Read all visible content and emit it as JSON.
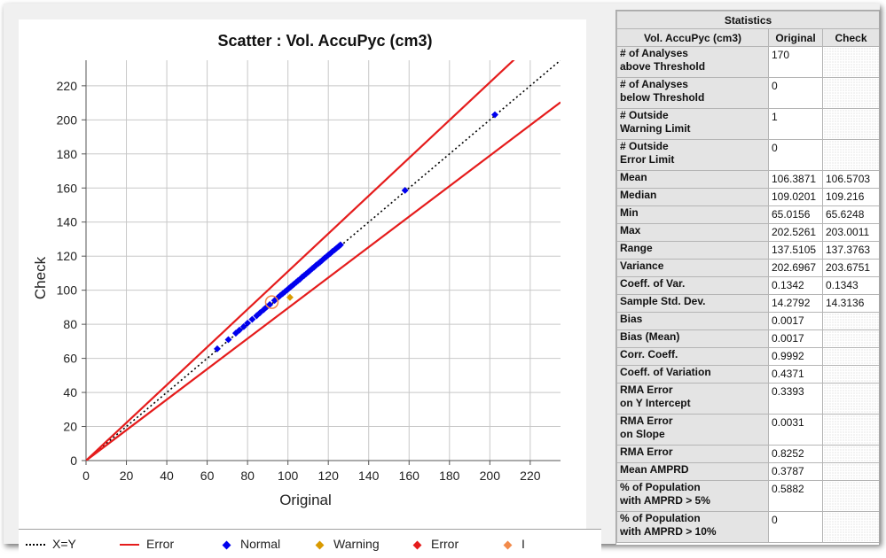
{
  "chart_data": {
    "type": "scatter",
    "title": "Scatter : Vol. AccuPyc (cm3)",
    "xlabel": "Original",
    "ylabel": "Check",
    "xlim": [
      0,
      235
    ],
    "ylim": [
      0,
      235
    ],
    "xticks": [
      0,
      20,
      40,
      60,
      80,
      100,
      120,
      140,
      160,
      180,
      200,
      220
    ],
    "yticks": [
      0,
      20,
      40,
      60,
      80,
      100,
      120,
      140,
      160,
      180,
      200,
      220
    ],
    "grid": true,
    "reference_lines": [
      {
        "name": "X=Y",
        "slope": 1.0,
        "style": "dotted",
        "color": "#000000"
      },
      {
        "name": "Error",
        "slope": 1.11,
        "style": "solid",
        "color": "#e51c1c"
      },
      {
        "name": "Error",
        "slope": 0.895,
        "style": "solid",
        "color": "#e51c1c"
      }
    ],
    "series": [
      {
        "name": "Normal",
        "color": "#0000ee",
        "points": [
          [
            65.0,
            65.6
          ],
          [
            70.5,
            71.0
          ],
          [
            74.2,
            74.8
          ],
          [
            76.0,
            76.6
          ],
          [
            78.1,
            78.6
          ],
          [
            80.0,
            80.7
          ],
          [
            82.3,
            82.9
          ],
          [
            84.5,
            85.0
          ],
          [
            86.2,
            86.8
          ],
          [
            88.0,
            88.6
          ],
          [
            89.5,
            90.2
          ],
          [
            91.0,
            91.6
          ],
          [
            93.4,
            94.0
          ],
          [
            95.0,
            95.6
          ],
          [
            96.3,
            97.0
          ],
          [
            97.4,
            98.0
          ],
          [
            98.5,
            99.1
          ],
          [
            99.6,
            100.2
          ],
          [
            100.4,
            101.0
          ],
          [
            101.3,
            101.9
          ],
          [
            102.2,
            102.8
          ],
          [
            103.0,
            103.6
          ],
          [
            104.1,
            104.7
          ],
          [
            105.0,
            105.6
          ],
          [
            106.0,
            106.5
          ],
          [
            107.0,
            107.7
          ],
          [
            108.0,
            108.6
          ],
          [
            109.0,
            109.6
          ],
          [
            110.1,
            110.7
          ],
          [
            111.0,
            111.6
          ],
          [
            112.1,
            112.8
          ],
          [
            113.0,
            113.6
          ],
          [
            114.0,
            114.7
          ],
          [
            115.1,
            115.7
          ],
          [
            116.0,
            116.6
          ],
          [
            117.0,
            117.6
          ],
          [
            118.1,
            118.8
          ],
          [
            119.0,
            119.6
          ],
          [
            120.0,
            120.7
          ],
          [
            121.0,
            121.6
          ],
          [
            122.0,
            122.7
          ],
          [
            123.1,
            123.7
          ],
          [
            124.0,
            124.6
          ],
          [
            125.1,
            125.7
          ],
          [
            126.0,
            126.6
          ],
          [
            158.0,
            158.6
          ],
          [
            202.5,
            203.0
          ]
        ]
      },
      {
        "name": "Warning",
        "color": "#d99a00",
        "points": [
          [
            101.0,
            95.8
          ]
        ]
      },
      {
        "name": "Error",
        "color": "#e51c1c",
        "points": []
      },
      {
        "name": "I",
        "color": "#f28a4a",
        "points": [
          [
            92.0,
            93.0
          ]
        ]
      }
    ]
  },
  "legend": [
    {
      "label": "X=Y",
      "kind": "dotted",
      "color": "#000000"
    },
    {
      "label": "Error",
      "kind": "line",
      "color": "#e51c1c"
    },
    {
      "label": "Normal",
      "kind": "dot",
      "color": "#0000ee"
    },
    {
      "label": "Warning",
      "kind": "dot",
      "color": "#d99a00"
    },
    {
      "label": "Error",
      "kind": "dot",
      "color": "#e51c1c"
    },
    {
      "label": "I",
      "kind": "dot",
      "color": "#f28a4a"
    }
  ],
  "stats": {
    "title": "Statistics",
    "header": [
      "Vol. AccuPyc (cm3)",
      "Original",
      "Check"
    ],
    "rows": [
      {
        "label": [
          "# of Analyses",
          "above Threshold"
        ],
        "original": "170",
        "check": "",
        "tall": true
      },
      {
        "label": [
          "# of Analyses",
          "below Threshold"
        ],
        "original": "0",
        "check": "",
        "tall": true
      },
      {
        "label": [
          "# Outside",
          "Warning Limit"
        ],
        "original": "1",
        "check": "",
        "tall": true
      },
      {
        "label": [
          "# Outside",
          "Error Limit"
        ],
        "original": "0",
        "check": "",
        "tall": true
      },
      {
        "label": [
          "Mean"
        ],
        "original": "106.3871",
        "check": "106.5703",
        "tall": false
      },
      {
        "label": [
          "Median"
        ],
        "original": "109.0201",
        "check": "109.216",
        "tall": false
      },
      {
        "label": [
          "Min"
        ],
        "original": "65.0156",
        "check": "65.6248",
        "tall": false
      },
      {
        "label": [
          "Max"
        ],
        "original": "202.5261",
        "check": "203.0011",
        "tall": false
      },
      {
        "label": [
          "Range"
        ],
        "original": "137.5105",
        "check": "137.3763",
        "tall": false
      },
      {
        "label": [
          "Variance"
        ],
        "original": "202.6967",
        "check": "203.6751",
        "tall": false
      },
      {
        "label": [
          "Coeff. of Var."
        ],
        "original": "0.1342",
        "check": "0.1343",
        "tall": false
      },
      {
        "label": [
          "Sample Std. Dev."
        ],
        "original": "14.2792",
        "check": "14.3136",
        "tall": false
      },
      {
        "label": [
          "Bias"
        ],
        "original": "0.0017",
        "check": "",
        "tall": false
      },
      {
        "label": [
          "Bias (Mean)"
        ],
        "original": "0.0017",
        "check": "",
        "tall": false
      },
      {
        "label": [
          "Corr. Coeff."
        ],
        "original": "0.9992",
        "check": "",
        "tall": false
      },
      {
        "label": [
          "Coeff. of Variation"
        ],
        "original": "0.4371",
        "check": "",
        "tall": false
      },
      {
        "label": [
          "RMA Error",
          "on Y Intercept"
        ],
        "original": "0.3393",
        "check": "",
        "tall": true
      },
      {
        "label": [
          "RMA Error",
          "on Slope"
        ],
        "original": "0.0031",
        "check": "",
        "tall": true
      },
      {
        "label": [
          "RMA Error"
        ],
        "original": "0.8252",
        "check": "",
        "tall": false
      },
      {
        "label": [
          "Mean AMPRD"
        ],
        "original": "0.3787",
        "check": "",
        "tall": false
      },
      {
        "label": [
          "% of Population",
          "with AMPRD > 5%"
        ],
        "original": "0.5882",
        "check": "",
        "tall": true
      },
      {
        "label": [
          "% of Population",
          "with AMPRD > 10%"
        ],
        "original": "0",
        "check": "",
        "tall": true
      }
    ]
  }
}
